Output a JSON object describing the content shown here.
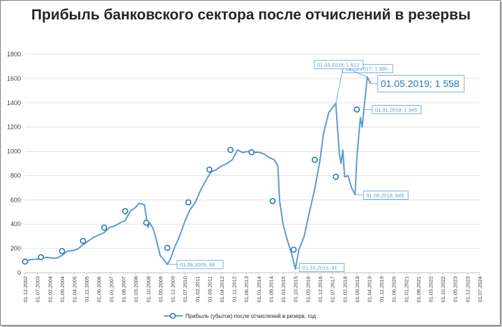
{
  "chart_data": {
    "type": "line",
    "title": "Прибыль банковского сектора после отчислений в резервы",
    "ylim": [
      0,
      1800
    ],
    "yticks": [
      0,
      200,
      400,
      600,
      800,
      1000,
      1200,
      1400,
      1600,
      1800
    ],
    "xlim": [
      "2002-12-01",
      "2024-07-01"
    ],
    "xticks": [
      "01.12.2002",
      "01.07.2003",
      "01.02.2004",
      "01.09.2004",
      "01.04.2005",
      "01.11.2005",
      "01.06.2006",
      "01.01.2007",
      "01.08.2007",
      "01.03.2008",
      "01.10.2008",
      "01.05.2009",
      "01.12.2009",
      "01.07.2010",
      "01.02.2011",
      "01.09.2011",
      "01.04.2012",
      "01.11.2012",
      "01.06.2013",
      "01.01.2014",
      "01.08.2014",
      "01.03.2015",
      "01.10.2015",
      "01.05.2016",
      "01.12.2016",
      "01.07.2017",
      "01.02.2018",
      "01.09.2018",
      "01.04.2019",
      "01.11.2019",
      "01.06.2020",
      "01.01.2021",
      "01.08.2021",
      "01.03.2022",
      "01.10.2022",
      "01.05.2023",
      "01.12.2023",
      "01.07.2024"
    ],
    "grid": true,
    "legend_position": "bottom",
    "series": [
      {
        "name": "Прибыль (убыток) после отчислений в резерв, год",
        "color": "#5b9bd5",
        "points": [
          [
            "2002-12-01",
            92
          ],
          [
            "2003-03-01",
            108
          ],
          [
            "2003-06-01",
            112
          ],
          [
            "2003-09-01",
            115
          ],
          [
            "2003-12-01",
            128
          ],
          [
            "2004-03-01",
            122
          ],
          [
            "2004-06-01",
            120
          ],
          [
            "2004-09-01",
            142
          ],
          [
            "2004-12-01",
            178
          ],
          [
            "2005-03-01",
            182
          ],
          [
            "2005-06-01",
            195
          ],
          [
            "2005-09-01",
            230
          ],
          [
            "2005-12-01",
            262
          ],
          [
            "2006-03-01",
            290
          ],
          [
            "2006-06-01",
            312
          ],
          [
            "2006-09-01",
            330
          ],
          [
            "2006-12-01",
            372
          ],
          [
            "2007-03-01",
            385
          ],
          [
            "2007-06-01",
            410
          ],
          [
            "2007-09-01",
            430
          ],
          [
            "2007-12-01",
            508
          ],
          [
            "2008-03-01",
            540
          ],
          [
            "2008-05-01",
            572
          ],
          [
            "2008-08-01",
            560
          ],
          [
            "2008-09-01",
            460
          ],
          [
            "2008-10-01",
            375
          ],
          [
            "2008-11-01",
            412
          ],
          [
            "2009-01-01",
            360
          ],
          [
            "2009-03-01",
            260
          ],
          [
            "2009-05-01",
            140
          ],
          [
            "2009-07-01",
            110
          ],
          [
            "2009-09-01",
            68
          ],
          [
            "2009-11-01",
            120
          ],
          [
            "2010-01-01",
            205
          ],
          [
            "2010-04-01",
            300
          ],
          [
            "2010-07-01",
            420
          ],
          [
            "2010-10-01",
            520
          ],
          [
            "2011-01-01",
            580
          ],
          [
            "2011-04-01",
            680
          ],
          [
            "2011-07-01",
            760
          ],
          [
            "2011-10-01",
            830
          ],
          [
            "2012-01-01",
            850
          ],
          [
            "2012-04-01",
            880
          ],
          [
            "2012-07-01",
            900
          ],
          [
            "2012-10-01",
            930
          ],
          [
            "2013-01-01",
            1012
          ],
          [
            "2013-04-01",
            990
          ],
          [
            "2013-07-01",
            1000
          ],
          [
            "2013-10-01",
            990
          ],
          [
            "2014-01-01",
            993
          ],
          [
            "2014-04-01",
            980
          ],
          [
            "2014-07-01",
            950
          ],
          [
            "2014-10-01",
            930
          ],
          [
            "2014-12-01",
            880
          ],
          [
            "2015-01-01",
            590
          ],
          [
            "2015-03-01",
            400
          ],
          [
            "2015-05-01",
            290
          ],
          [
            "2015-08-01",
            150
          ],
          [
            "2015-10-01",
            31
          ],
          [
            "2015-12-01",
            190
          ],
          [
            "2016-03-01",
            300
          ],
          [
            "2016-06-01",
            500
          ],
          [
            "2016-09-01",
            690
          ],
          [
            "2016-12-01",
            930
          ],
          [
            "2017-02-01",
            1150
          ],
          [
            "2017-05-01",
            1320
          ],
          [
            "2017-09-01",
            1395
          ],
          [
            "2017-11-01",
            980
          ],
          [
            "2017-12-01",
            900
          ],
          [
            "2018-01-01",
            1010
          ],
          [
            "2018-02-01",
            790
          ],
          [
            "2018-04-01",
            800
          ],
          [
            "2018-06-01",
            700
          ],
          [
            "2018-08-01",
            645
          ],
          [
            "2018-09-01",
            950
          ],
          [
            "2018-11-01",
            1280
          ],
          [
            "2018-12-01",
            1200
          ],
          [
            "2019-01-01",
            1345
          ],
          [
            "2019-03-01",
            1612
          ],
          [
            "2019-05-01",
            1558
          ]
        ],
        "markers": [
          [
            "2002-12-01",
            92
          ],
          [
            "2003-09-01",
            128
          ],
          [
            "2004-09-01",
            178
          ],
          [
            "2005-09-01",
            262
          ],
          [
            "2006-09-01",
            372
          ],
          [
            "2007-09-01",
            508
          ],
          [
            "2008-09-01",
            412
          ],
          [
            "2009-09-01",
            205
          ],
          [
            "2010-09-01",
            580
          ],
          [
            "2011-09-01",
            850
          ],
          [
            "2012-09-01",
            1012
          ],
          [
            "2013-09-01",
            993
          ],
          [
            "2014-09-01",
            590
          ],
          [
            "2015-09-01",
            190
          ],
          [
            "2016-09-01",
            930
          ],
          [
            "2017-09-01",
            790
          ],
          [
            "2018-09-01",
            1345
          ]
        ]
      }
    ],
    "annotations": [
      {
        "label": "01.09.2009; 68",
        "x": "2009-09-01",
        "y": 68,
        "big": false
      },
      {
        "label": "01.10.2015; 31",
        "x": "2015-10-01",
        "y": 31,
        "big": false
      },
      {
        "label": "01.09.2017; 1 395",
        "x": "2017-09-01",
        "y": 1395,
        "big": false
      },
      {
        "label": "01.08.2018; 645",
        "x": "2018-08-01",
        "y": 645,
        "big": false
      },
      {
        "label": "01.01.2019; 1 345",
        "x": "2019-01-01",
        "y": 1345,
        "big": false
      },
      {
        "label": "01.03.2019; 1 612",
        "x": "2019-03-01",
        "y": 1612,
        "big": false
      },
      {
        "label": "01.05.2019; 1 558",
        "x": "2019-05-01",
        "y": 1558,
        "big": true
      }
    ]
  }
}
